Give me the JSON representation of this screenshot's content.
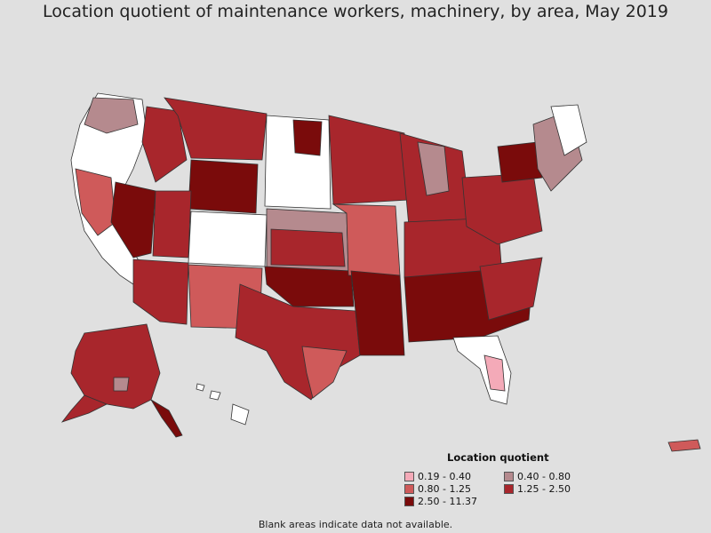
{
  "title": "Location quotient of maintenance workers, machinery, by area, May 2019",
  "legend": {
    "title": "Location quotient",
    "items": [
      {
        "label": "0.19 - 0.40",
        "color": "#f4aab8"
      },
      {
        "label": "0.40 - 0.80",
        "color": "#b58a8e"
      },
      {
        "label": "0.80 - 1.25",
        "color": "#cf5a5a"
      },
      {
        "label": "1.25 - 2.50",
        "color": "#a8262c"
      },
      {
        "label": "2.50 - 11.37",
        "color": "#7a0b0b"
      }
    ]
  },
  "footnote": "Blank areas indicate data not available.",
  "colors": {
    "background": "#e0e0e0",
    "no_data": "#ffffff",
    "border": "#333333"
  }
}
